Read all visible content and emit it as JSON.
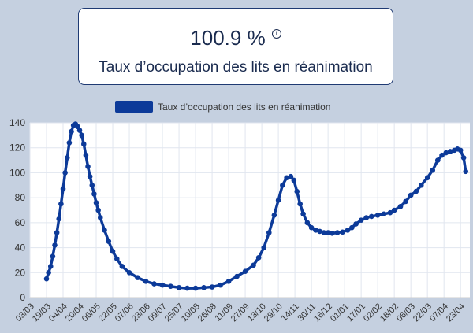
{
  "kpi": {
    "value": "100.9 %",
    "label": "Taux d’occupation des lits en réanimation",
    "info_icon": "info-icon"
  },
  "colors": {
    "series": "#0c3a99",
    "background": "#c5d0e0",
    "grid": "#e1e6ef",
    "axis_text": "#333333"
  },
  "chart_data": {
    "type": "line",
    "legend": {
      "position": "top-center",
      "label": "Taux d’occupation des lits en réanimation"
    },
    "grid": true,
    "ylim": [
      0,
      140
    ],
    "yticks": [
      0,
      20,
      40,
      60,
      80,
      100,
      120,
      140
    ],
    "xticks": [
      "03/03",
      "19/03",
      "04/04",
      "20/04",
      "06/05",
      "22/05",
      "07/06",
      "23/06",
      "09/07",
      "25/07",
      "10/08",
      "26/08",
      "11/09",
      "27/09",
      "13/10",
      "29/10",
      "14/11",
      "30/11",
      "16/12",
      "01/01",
      "17/01",
      "02/02",
      "18/02",
      "06/03",
      "22/03",
      "07/04",
      "23/04"
    ],
    "series": [
      {
        "name": "Taux d’occupation des lits en réanimation",
        "x": [
          "2020-03-19",
          "2020-03-21",
          "2020-03-23",
          "2020-03-25",
          "2020-03-27",
          "2020-03-29",
          "2020-03-31",
          "2020-04-02",
          "2020-04-04",
          "2020-04-06",
          "2020-04-08",
          "2020-04-10",
          "2020-04-12",
          "2020-04-14",
          "2020-04-16",
          "2020-04-18",
          "2020-04-20",
          "2020-04-22",
          "2020-04-24",
          "2020-04-26",
          "2020-04-28",
          "2020-04-30",
          "2020-05-02",
          "2020-05-04",
          "2020-05-06",
          "2020-05-08",
          "2020-05-10",
          "2020-05-14",
          "2020-05-18",
          "2020-05-22",
          "2020-05-26",
          "2020-05-31",
          "2020-06-07",
          "2020-06-15",
          "2020-06-23",
          "2020-07-01",
          "2020-07-09",
          "2020-07-17",
          "2020-07-25",
          "2020-08-02",
          "2020-08-10",
          "2020-08-18",
          "2020-08-26",
          "2020-09-03",
          "2020-09-11",
          "2020-09-19",
          "2020-09-27",
          "2020-10-05",
          "2020-10-10",
          "2020-10-15",
          "2020-10-20",
          "2020-10-25",
          "2020-10-29",
          "2020-11-02",
          "2020-11-06",
          "2020-11-10",
          "2020-11-13",
          "2020-11-16",
          "2020-11-19",
          "2020-11-22",
          "2020-11-26",
          "2020-11-30",
          "2020-12-04",
          "2020-12-08",
          "2020-12-12",
          "2020-12-16",
          "2020-12-20",
          "2020-12-25",
          "2020-12-30",
          "2021-01-04",
          "2021-01-08",
          "2021-01-12",
          "2021-01-17",
          "2021-01-22",
          "2021-01-27",
          "2021-02-02",
          "2021-02-08",
          "2021-02-14",
          "2021-02-18",
          "2021-02-24",
          "2021-03-01",
          "2021-03-06",
          "2021-03-11",
          "2021-03-16",
          "2021-03-22",
          "2021-03-27",
          "2021-04-01",
          "2021-04-05",
          "2021-04-09",
          "2021-04-13",
          "2021-04-17",
          "2021-04-20",
          "2021-04-23",
          "2021-04-26",
          "2021-04-28"
        ],
        "values": [
          15,
          20,
          25,
          33,
          42,
          52,
          63,
          75,
          87,
          100,
          112,
          124,
          133,
          138,
          139,
          137,
          134,
          130,
          123,
          114,
          105,
          97,
          90,
          83,
          76,
          70,
          64,
          54,
          45,
          37,
          31,
          25,
          20,
          16,
          13,
          11,
          10,
          9,
          8,
          7.5,
          7.5,
          8,
          8.5,
          10,
          13,
          17,
          21,
          26,
          32,
          40,
          52,
          66,
          78,
          90,
          96,
          97,
          94,
          85,
          75,
          67,
          60,
          56,
          54,
          53,
          52,
          52,
          51.5,
          52,
          52.5,
          54,
          56,
          59,
          62,
          64,
          65,
          66,
          67,
          68,
          70,
          73,
          77,
          82,
          85,
          90,
          96,
          102,
          110,
          114,
          116,
          117,
          118,
          119,
          118,
          112,
          101
        ]
      }
    ]
  }
}
